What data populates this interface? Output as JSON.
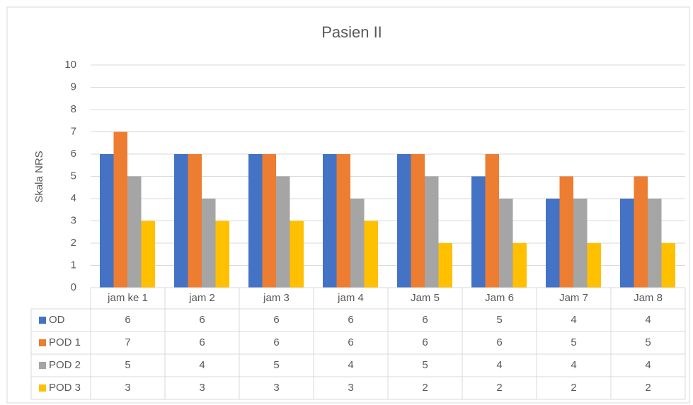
{
  "chart_data": {
    "type": "bar",
    "title": "Pasien II",
    "y_label": "Skala NRS",
    "categories": [
      "jam ke 1",
      "jam 2",
      "jam 3",
      "jam 4",
      "Jam 5",
      "Jam 6",
      "Jam 7",
      "Jam 8"
    ],
    "series": [
      {
        "name": "OD",
        "color": "#4472c4",
        "values": [
          6,
          6,
          6,
          6,
          6,
          5,
          4,
          4
        ]
      },
      {
        "name": "POD 1",
        "color": "#ed7d31",
        "values": [
          7,
          6,
          6,
          6,
          6,
          6,
          5,
          5
        ]
      },
      {
        "name": "POD 2",
        "color": "#a5a5a5",
        "values": [
          5,
          4,
          5,
          4,
          5,
          4,
          4,
          4
        ]
      },
      {
        "name": "POD 3",
        "color": "#ffc000",
        "values": [
          3,
          3,
          3,
          3,
          2,
          2,
          2,
          2
        ]
      }
    ],
    "ylim": [
      0,
      10
    ],
    "yticks": [
      0,
      1,
      2,
      3,
      4,
      5,
      6,
      7,
      8,
      9,
      10
    ],
    "grid": true,
    "data_table": true
  }
}
